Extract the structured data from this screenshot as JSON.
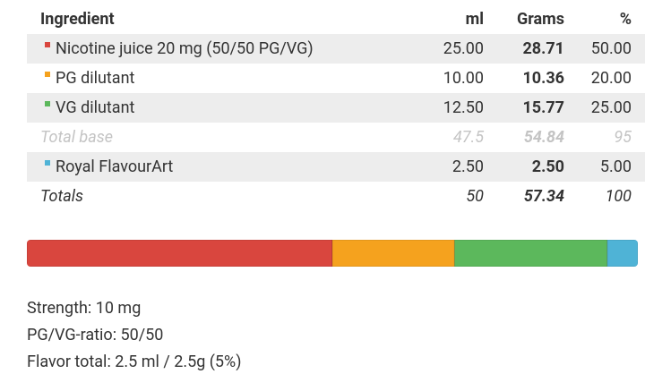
{
  "table": {
    "headers": [
      "Ingredient",
      "ml",
      "Grams",
      "%"
    ],
    "rows": [
      {
        "cells": [
          "Nicotine juice 20 mg (50/50 PG/VG)",
          "25.00",
          "28.71",
          "50.00"
        ],
        "color": "#d9463e"
      },
      {
        "cells": [
          "PG dilutant",
          "10.00",
          "10.36",
          "20.00"
        ],
        "color": "#f5a21e"
      },
      {
        "cells": [
          "VG dilutant",
          "12.50",
          "15.77",
          "25.00"
        ],
        "color": "#5cb85c"
      },
      {
        "cells": [
          "Total base",
          "47.5",
          "54.84",
          "95"
        ]
      },
      {
        "cells": [
          "Royal FlavourArt",
          "2.50",
          "2.50",
          "5.00"
        ],
        "color": "#4fb3d6"
      },
      {
        "cells": [
          "Totals",
          "50",
          "57.34",
          "100"
        ]
      }
    ]
  },
  "footer": [
    "Strength: 10 mg",
    "PG/VG-ratio: 50/50",
    "Flavor total: 2.5 ml / 2.5g (5%)"
  ]
}
